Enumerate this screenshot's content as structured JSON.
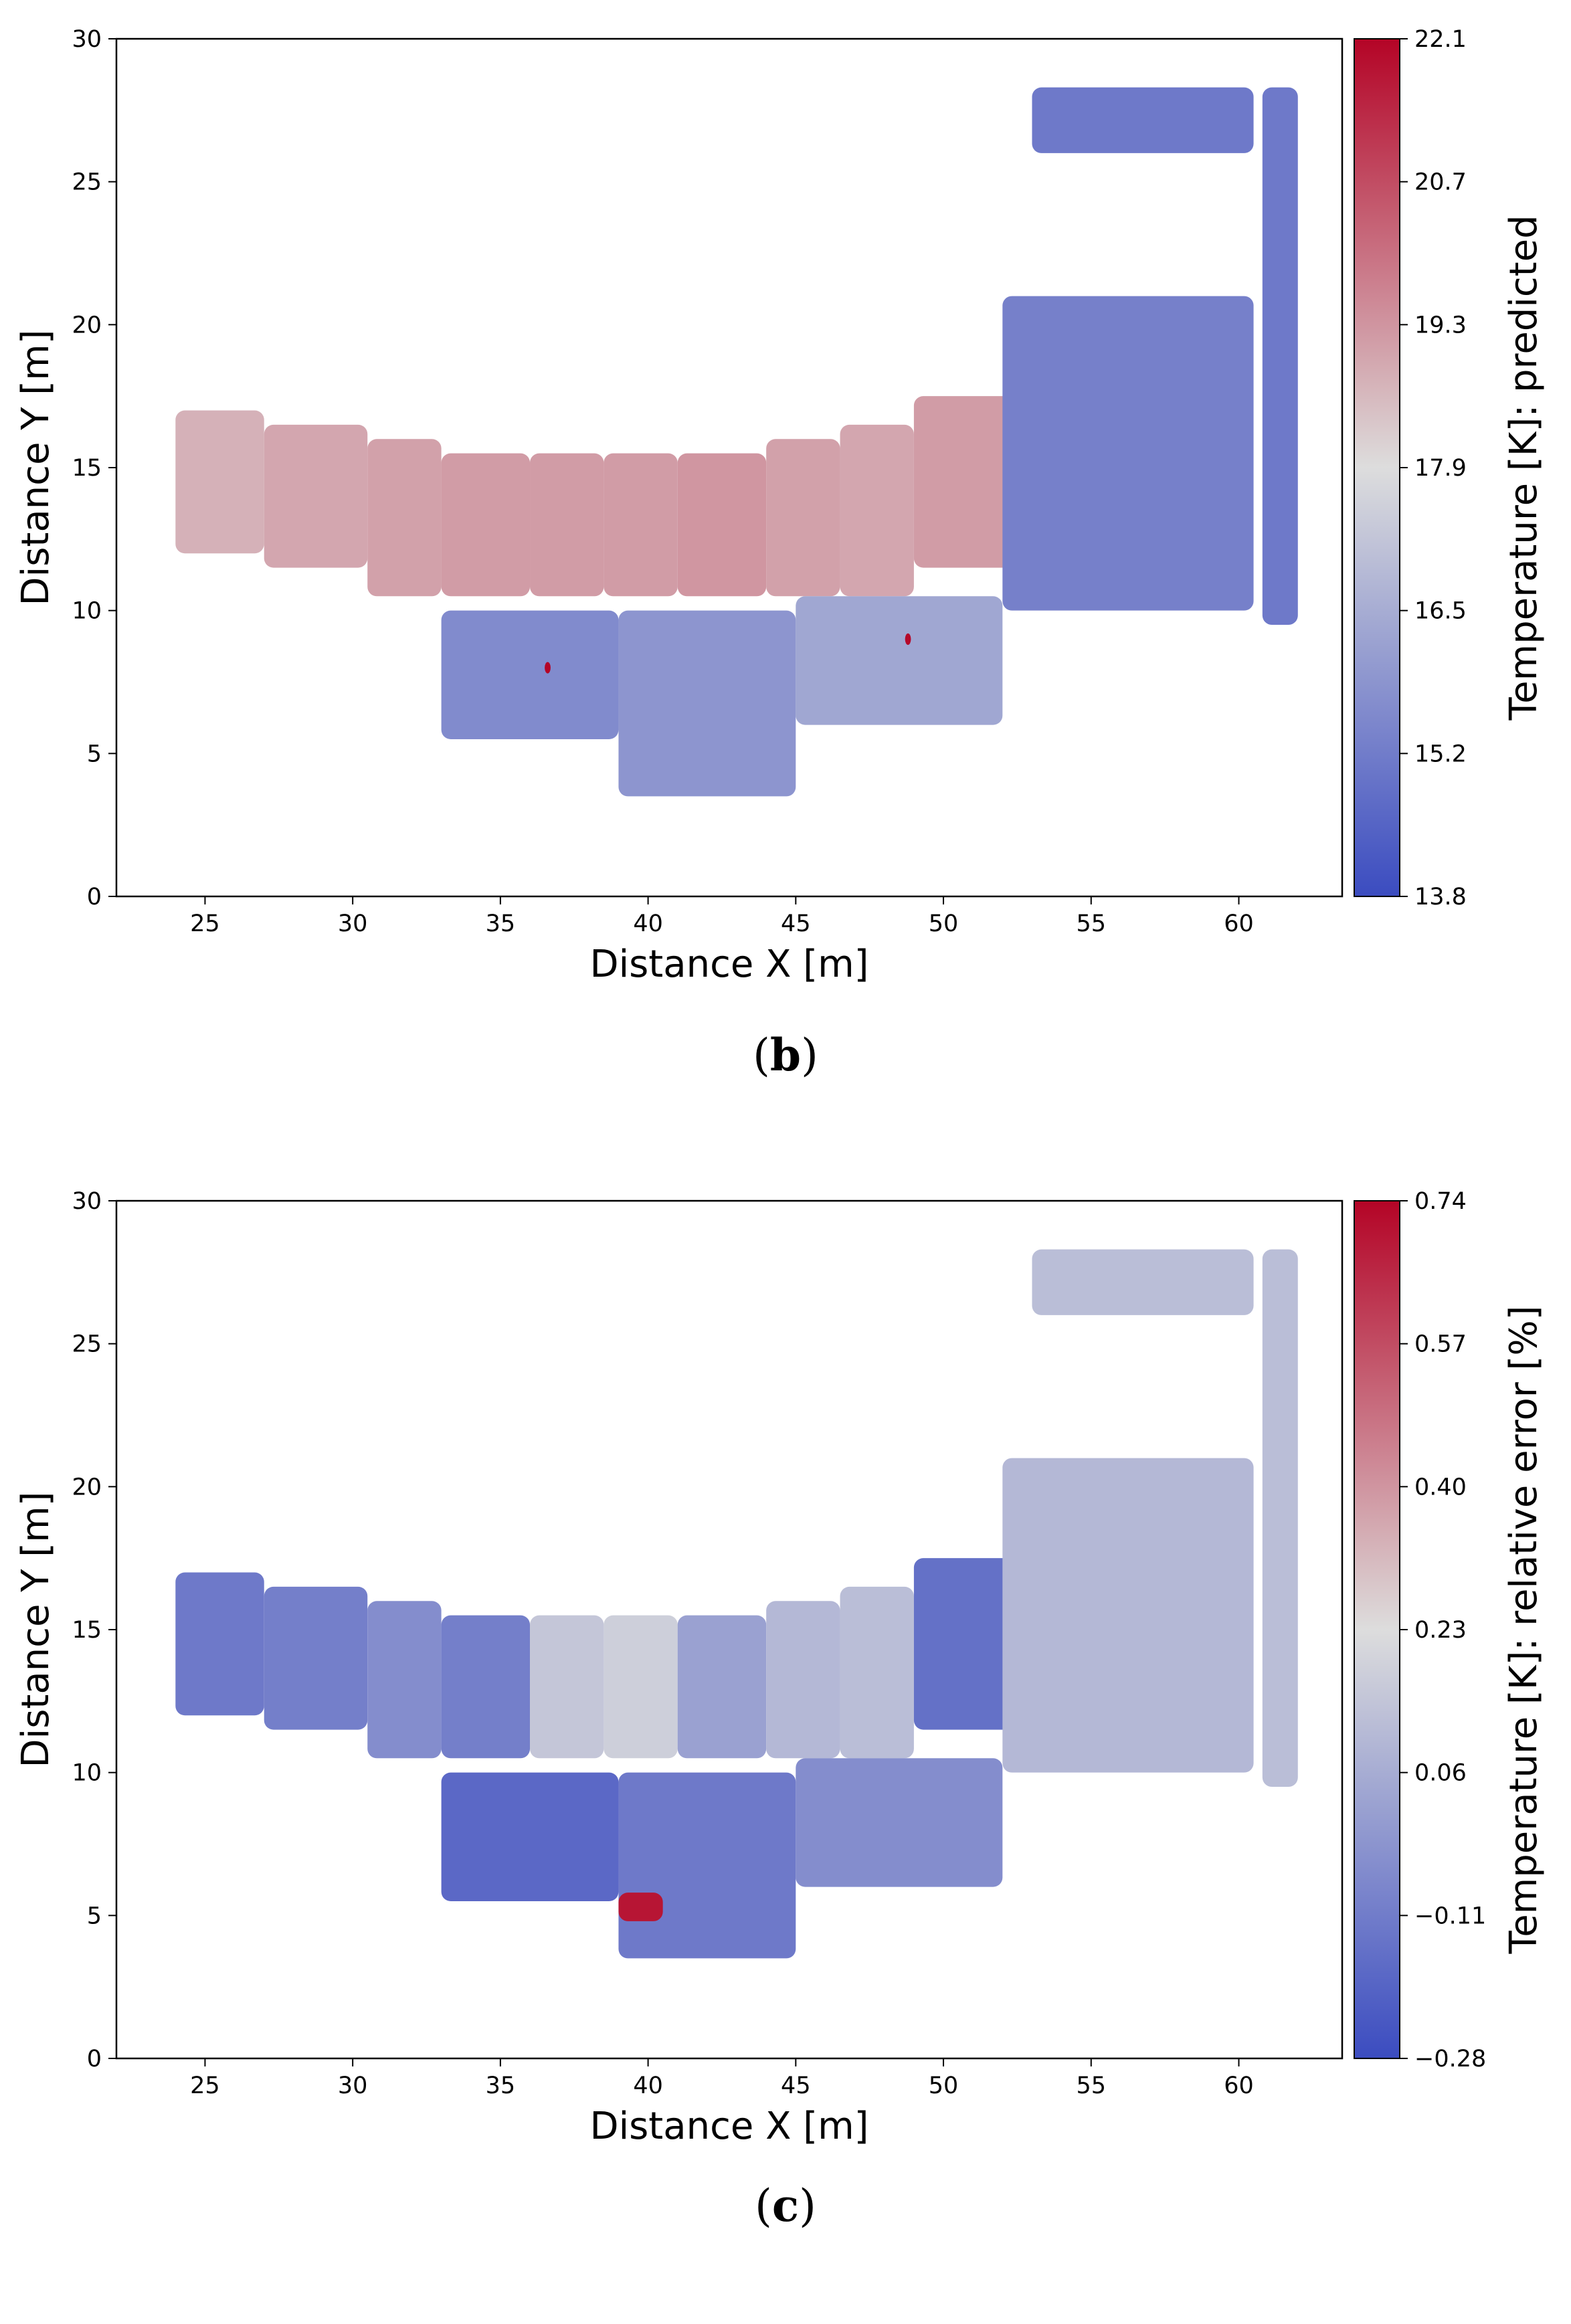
{
  "colors": {
    "cold": "#3b4cc0",
    "mid": "#dddddd",
    "hot": "#b40426"
  },
  "chart_data": [
    {
      "type": "heatmap",
      "panel_label": "(b)",
      "panel_letter": "b",
      "xlabel": "Distance X [m]",
      "ylabel": "Distance Y [m]",
      "colorbar_label": "Temperature [K]: predicted",
      "xlim": [
        22,
        63.5
      ],
      "ylim": [
        0,
        30
      ],
      "xticks": [
        25,
        30,
        35,
        40,
        45,
        50,
        55,
        60
      ],
      "yticks": [
        0,
        5,
        10,
        15,
        20,
        25,
        30
      ],
      "colorbar_ticks": [
        "13.8",
        "15.2",
        "16.5",
        "17.9",
        "19.3",
        "20.7",
        "22.1"
      ],
      "colorbar_range": [
        13.8,
        22.1
      ],
      "regions": [
        {
          "name": "room-block-1",
          "x": [
            24,
            27
          ],
          "y": [
            12,
            17
          ],
          "value": 18.8
        },
        {
          "name": "room-block-2",
          "x": [
            27,
            30.5
          ],
          "y": [
            11.5,
            16.5
          ],
          "value": 19.0
        },
        {
          "name": "room-block-3",
          "x": [
            30.5,
            33
          ],
          "y": [
            10.5,
            16
          ],
          "value": 19.1
        },
        {
          "name": "room-block-4",
          "x": [
            33,
            36
          ],
          "y": [
            10.5,
            15.5
          ],
          "value": 19.2
        },
        {
          "name": "room-block-5",
          "x": [
            36,
            38.5
          ],
          "y": [
            10.5,
            15.5
          ],
          "value": 19.2
        },
        {
          "name": "room-block-6",
          "x": [
            38.5,
            41
          ],
          "y": [
            10.5,
            15.5
          ],
          "value": 19.2
        },
        {
          "name": "room-block-7",
          "x": [
            41,
            44
          ],
          "y": [
            10.5,
            15.5
          ],
          "value": 19.3
        },
        {
          "name": "room-block-8",
          "x": [
            44,
            46.5
          ],
          "y": [
            10.5,
            16
          ],
          "value": 19.1
        },
        {
          "name": "room-block-9",
          "x": [
            46.5,
            49
          ],
          "y": [
            10.5,
            16.5
          ],
          "value": 19.0
        },
        {
          "name": "room-block-10",
          "x": [
            49,
            53
          ],
          "y": [
            11.5,
            17.5
          ],
          "value": 19.2
        },
        {
          "name": "lower-block-left",
          "x": [
            33,
            39
          ],
          "y": [
            5.5,
            10
          ],
          "value": 15.6
        },
        {
          "name": "lower-block-mid",
          "x": [
            39,
            45
          ],
          "y": [
            3.5,
            10
          ],
          "value": 15.9
        },
        {
          "name": "corridor",
          "x": [
            45,
            52
          ],
          "y": [
            6,
            10.5
          ],
          "value": 16.4
        },
        {
          "name": "diagonal-band",
          "x": [
            52,
            60.5
          ],
          "y": [
            10,
            21
          ],
          "value": 15.3
        },
        {
          "name": "top-block",
          "x": [
            53,
            60.5
          ],
          "y": [
            26,
            28.3
          ],
          "value": 15.1
        },
        {
          "name": "right-column",
          "x": [
            60.8,
            62
          ],
          "y": [
            9.5,
            28.3
          ],
          "value": 15.1
        },
        {
          "name": "hot-spot-1",
          "x": [
            36.5,
            36.7
          ],
          "y": [
            7.8,
            8.2
          ],
          "value": 22.1
        },
        {
          "name": "hot-spot-2",
          "x": [
            48.7,
            48.9
          ],
          "y": [
            8.8,
            9.2
          ],
          "value": 22.0
        }
      ]
    },
    {
      "type": "heatmap",
      "panel_label": "(c)",
      "panel_letter": "c",
      "xlabel": "Distance X [m]",
      "ylabel": "Distance Y [m]",
      "colorbar_label": "Temperature [K]: relative error [%]",
      "xlim": [
        22,
        63.5
      ],
      "ylim": [
        0,
        30
      ],
      "xticks": [
        25,
        30,
        35,
        40,
        45,
        50,
        55,
        60
      ],
      "yticks": [
        0,
        5,
        10,
        15,
        20,
        25,
        30
      ],
      "colorbar_ticks": [
        "−0.28",
        "−0.11",
        "0.06",
        "0.23",
        "0.40",
        "0.57",
        "0.74"
      ],
      "colorbar_range": [
        -0.28,
        0.74
      ],
      "regions": [
        {
          "name": "room-block-1",
          "x": [
            24,
            27
          ],
          "y": [
            12,
            17
          ],
          "value": -0.12
        },
        {
          "name": "room-block-2",
          "x": [
            27,
            30.5
          ],
          "y": [
            11.5,
            16.5
          ],
          "value": -0.1
        },
        {
          "name": "room-block-3",
          "x": [
            30.5,
            33
          ],
          "y": [
            10.5,
            16
          ],
          "value": -0.05
        },
        {
          "name": "room-block-4",
          "x": [
            33,
            36
          ],
          "y": [
            10.5,
            15.5
          ],
          "value": -0.1
        },
        {
          "name": "room-block-5",
          "x": [
            36,
            38.5
          ],
          "y": [
            10.5,
            15.5
          ],
          "value": 0.15
        },
        {
          "name": "room-block-6",
          "x": [
            38.5,
            41
          ],
          "y": [
            10.5,
            15.5
          ],
          "value": 0.18
        },
        {
          "name": "room-block-7",
          "x": [
            41,
            44
          ],
          "y": [
            10.5,
            15.5
          ],
          "value": 0.02
        },
        {
          "name": "room-block-8",
          "x": [
            44,
            46.5
          ],
          "y": [
            10.5,
            16
          ],
          "value": 0.1
        },
        {
          "name": "room-block-9",
          "x": [
            46.5,
            49
          ],
          "y": [
            10.5,
            16.5
          ],
          "value": 0.12
        },
        {
          "name": "room-block-10",
          "x": [
            49,
            53
          ],
          "y": [
            11.5,
            17.5
          ],
          "value": -0.15
        },
        {
          "name": "lower-block-left",
          "x": [
            33,
            39
          ],
          "y": [
            5.5,
            10
          ],
          "value": -0.18
        },
        {
          "name": "lower-block-mid",
          "x": [
            39,
            45
          ],
          "y": [
            3.5,
            10
          ],
          "value": -0.12
        },
        {
          "name": "corridor",
          "x": [
            45,
            52
          ],
          "y": [
            6,
            10.5
          ],
          "value": -0.05
        },
        {
          "name": "diagonal-band",
          "x": [
            52,
            60.5
          ],
          "y": [
            10,
            21
          ],
          "value": 0.1
        },
        {
          "name": "top-block",
          "x": [
            53,
            60.5
          ],
          "y": [
            26,
            28.3
          ],
          "value": 0.12
        },
        {
          "name": "right-column",
          "x": [
            60.8,
            62
          ],
          "y": [
            9.5,
            28.3
          ],
          "value": 0.12
        },
        {
          "name": "hot-spot",
          "x": [
            39,
            40.5
          ],
          "y": [
            4.8,
            5.8
          ],
          "value": 0.7
        }
      ]
    }
  ]
}
